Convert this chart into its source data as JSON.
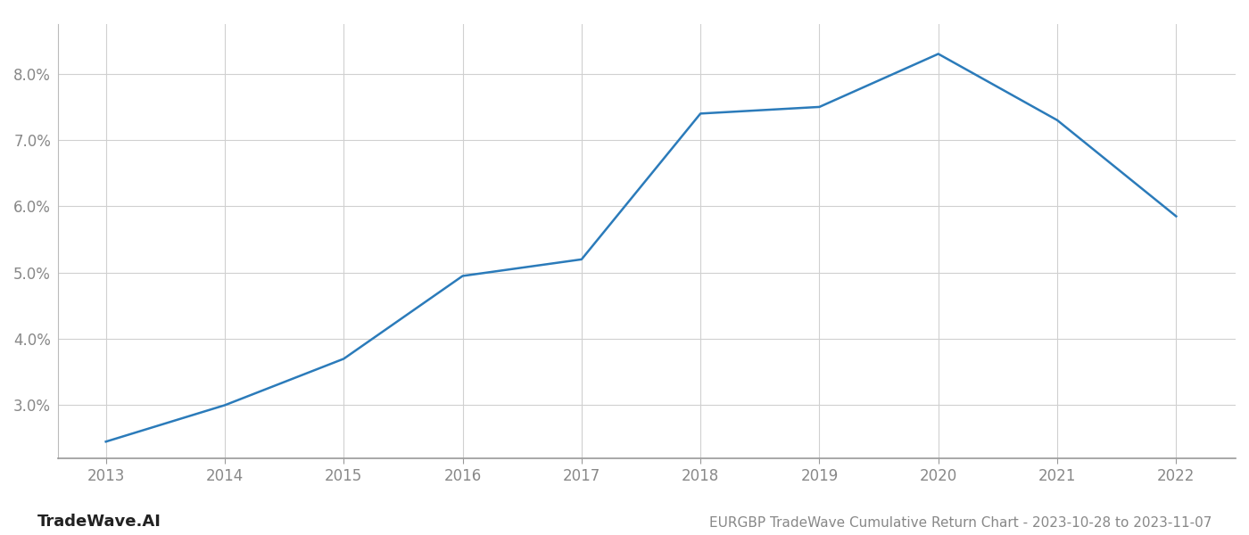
{
  "x": [
    2013,
    2014,
    2015,
    2016,
    2017,
    2018,
    2019,
    2020,
    2021,
    2022
  ],
  "y": [
    2.45,
    3.0,
    3.7,
    4.95,
    5.2,
    7.4,
    7.5,
    8.3,
    7.3,
    5.85
  ],
  "line_color": "#2b7bba",
  "line_width": 1.8,
  "background_color": "#ffffff",
  "grid_color": "#d0d0d0",
  "title": "EURGBP TradeWave Cumulative Return Chart - 2023-10-28 to 2023-11-07",
  "watermark": "TradeWave.AI",
  "xlim": [
    2012.6,
    2022.5
  ],
  "ylim": [
    2.2,
    8.75
  ],
  "yticks": [
    3.0,
    4.0,
    5.0,
    6.0,
    7.0,
    8.0
  ],
  "xticks": [
    2013,
    2014,
    2015,
    2016,
    2017,
    2018,
    2019,
    2020,
    2021,
    2022
  ],
  "title_fontsize": 11,
  "tick_fontsize": 12,
  "watermark_fontsize": 13
}
